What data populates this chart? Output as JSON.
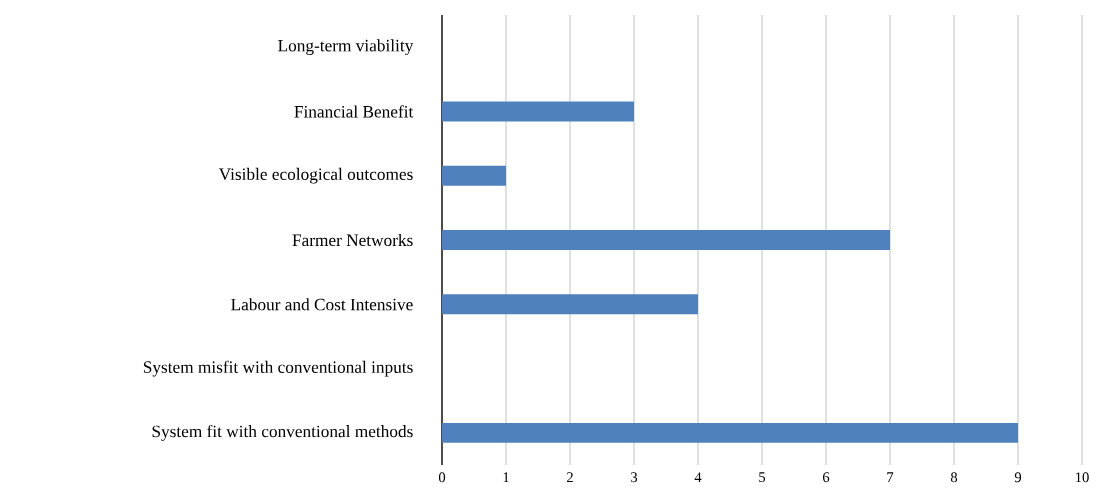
{
  "chart_data": {
    "type": "bar",
    "orientation": "horizontal",
    "categories": [
      "Long-term viability",
      "Financial Benefit",
      "Visible ecological outcomes",
      "Farmer Networks",
      "Labour and Cost Intensive",
      "System misfit with conventional inputs",
      "System fit with conventional methods"
    ],
    "values": [
      0,
      3,
      1,
      7,
      4,
      0,
      9
    ],
    "color": "#4f81bd",
    "xlim": [
      0,
      10
    ],
    "xticks": [
      0,
      1,
      2,
      3,
      4,
      5,
      6,
      7,
      8,
      9,
      10
    ],
    "grid": "x"
  }
}
